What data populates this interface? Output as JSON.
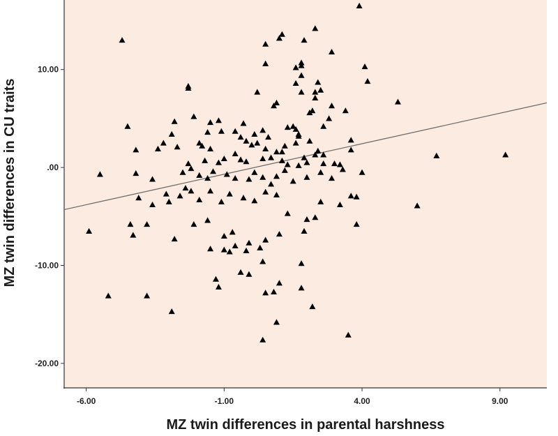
{
  "chart_data": {
    "type": "scatter",
    "title": "",
    "xlabel": "MZ twin differences in parental harshness",
    "ylabel": "MZ twin differences in CU traits",
    "xlim": [
      -6.8,
      10.7
    ],
    "ylim": [
      -22.5,
      17.1
    ],
    "x_ticks": [
      -6,
      -1,
      4,
      9
    ],
    "x_tick_labels": [
      "-6.00",
      "-1.00",
      "4.00",
      "9.00"
    ],
    "y_ticks": [
      -20,
      -10,
      0,
      10
    ],
    "y_tick_labels": [
      "-20.00",
      "-10.00",
      ".00",
      "10.00"
    ],
    "grid": false,
    "legend": "none",
    "colors": {
      "plot_background": "#fcebe0",
      "marker": "#000000",
      "fit_line": "#707070",
      "axis": "#333333"
    },
    "marker": "triangle",
    "fit_line": {
      "x": [
        -6.8,
        10.7
      ],
      "y": [
        -4.3,
        6.6
      ]
    },
    "points": [
      [
        -4.7,
        13.0
      ],
      [
        3.9,
        16.5
      ],
      [
        1.1,
        13.6
      ],
      [
        1.0,
        13.2
      ],
      [
        0.5,
        12.6
      ],
      [
        2.3,
        14.2
      ],
      [
        1.9,
        13.0
      ],
      [
        2.9,
        11.8
      ],
      [
        4.1,
        10.3
      ],
      [
        4.2,
        8.8
      ],
      [
        5.3,
        6.7
      ],
      [
        0.5,
        10.6
      ],
      [
        1.6,
        10.2
      ],
      [
        1.8,
        10.7
      ],
      [
        1.8,
        10.4
      ],
      [
        1.8,
        9.4
      ],
      [
        1.6,
        8.6
      ],
      [
        2.4,
        8.7
      ],
      [
        2.5,
        7.9
      ],
      [
        2.3,
        7.7
      ],
      [
        2.3,
        7.1
      ],
      [
        -2.3,
        8.3
      ],
      [
        -2.3,
        8.1
      ],
      [
        0.2,
        7.7
      ],
      [
        1.8,
        7.7
      ],
      [
        -2.8,
        4.7
      ],
      [
        -2.1,
        5.2
      ],
      [
        -1.2,
        4.8
      ],
      [
        -1.5,
        4.6
      ],
      [
        -0.3,
        4.5
      ],
      [
        0.8,
        6.3
      ],
      [
        0.9,
        6.6
      ],
      [
        2.2,
        5.8
      ],
      [
        2.1,
        5.6
      ],
      [
        2.9,
        6.3
      ],
      [
        3.4,
        5.8
      ],
      [
        2.8,
        5.0
      ],
      [
        -4.5,
        4.2
      ],
      [
        -2.9,
        3.4
      ],
      [
        -1.6,
        3.6
      ],
      [
        -1.9,
        2.5
      ],
      [
        -0.6,
        3.7
      ],
      [
        0.1,
        3.4
      ],
      [
        0.4,
        3.8
      ],
      [
        0.6,
        3.1
      ],
      [
        1.3,
        4.1
      ],
      [
        1.5,
        4.2
      ],
      [
        1.7,
        3.2
      ],
      [
        1.6,
        3.9
      ],
      [
        2.6,
        4.2
      ],
      [
        1.7,
        3.4
      ],
      [
        -3.2,
        2.5
      ],
      [
        -2.7,
        2.1
      ],
      [
        -1.8,
        2.2
      ],
      [
        -1.5,
        1.9
      ],
      [
        -1.1,
        3.7
      ],
      [
        -0.4,
        3.1
      ],
      [
        -0.2,
        2.7
      ],
      [
        0.0,
        2.3
      ],
      [
        0.2,
        2.5
      ],
      [
        0.5,
        1.9
      ],
      [
        0.9,
        1.6
      ],
      [
        1.1,
        1.6
      ],
      [
        1.2,
        2.2
      ],
      [
        1.6,
        2.5
      ],
      [
        2.1,
        2.7
      ],
      [
        2.4,
        1.7
      ],
      [
        2.6,
        1.3
      ],
      [
        3.6,
        1.8
      ],
      [
        3.6,
        2.8
      ],
      [
        -4.2,
        1.8
      ],
      [
        -3.4,
        1.9
      ],
      [
        -2.5,
        -0.5
      ],
      [
        -2.2,
        -0.1
      ],
      [
        -2.3,
        0.4
      ],
      [
        -1.7,
        0.7
      ],
      [
        -1.2,
        0.5
      ],
      [
        -1.0,
        0.9
      ],
      [
        -0.6,
        1.4
      ],
      [
        -0.4,
        0.8
      ],
      [
        -0.2,
        0.6
      ],
      [
        0.4,
        0.9
      ],
      [
        0.7,
        1.0
      ],
      [
        1.1,
        0.7
      ],
      [
        1.3,
        0.3
      ],
      [
        1.7,
        0.2
      ],
      [
        1.9,
        1.0
      ],
      [
        2.0,
        0.5
      ],
      [
        2.3,
        1.3
      ],
      [
        2.6,
        0.4
      ],
      [
        3.0,
        0.4
      ],
      [
        3.2,
        0.3
      ],
      [
        -5.5,
        -0.7
      ],
      [
        -4.2,
        -0.6
      ],
      [
        -3.6,
        -1.2
      ],
      [
        -3.1,
        -2.7
      ],
      [
        -2.4,
        -2.1
      ],
      [
        -1.9,
        -0.8
      ],
      [
        -1.6,
        -1.1
      ],
      [
        -1.4,
        -0.4
      ],
      [
        -0.9,
        -0.7
      ],
      [
        -0.6,
        -1.1
      ],
      [
        -0.1,
        -1.2
      ],
      [
        0.1,
        -0.5
      ],
      [
        0.4,
        -1.0
      ],
      [
        0.7,
        -1.7
      ],
      [
        0.9,
        -0.9
      ],
      [
        1.2,
        -0.3
      ],
      [
        1.5,
        -1.4
      ],
      [
        2.0,
        -1.0
      ],
      [
        2.5,
        -0.5
      ],
      [
        2.9,
        -1.1
      ],
      [
        3.3,
        -0.2
      ],
      [
        3.8,
        -3.0
      ],
      [
        4.0,
        -0.5
      ],
      [
        -4.1,
        -3.1
      ],
      [
        -3.6,
        -3.8
      ],
      [
        -3.0,
        -3.5
      ],
      [
        -2.6,
        -2.9
      ],
      [
        -2.2,
        -2.4
      ],
      [
        -1.9,
        -3.3
      ],
      [
        -1.5,
        -2.4
      ],
      [
        -1.1,
        -3.5
      ],
      [
        -0.8,
        -2.7
      ],
      [
        -0.3,
        -3.1
      ],
      [
        0.1,
        -3.4
      ],
      [
        0.5,
        -2.5
      ],
      [
        0.9,
        -2.8
      ],
      [
        1.3,
        -4.7
      ],
      [
        2.0,
        -5.3
      ],
      [
        2.5,
        -3.5
      ],
      [
        3.2,
        -3.8
      ],
      [
        3.6,
        -2.9
      ],
      [
        6.7,
        1.2
      ],
      [
        9.2,
        1.3
      ],
      [
        6.0,
        -3.9
      ],
      [
        -5.9,
        -6.5
      ],
      [
        -4.4,
        -5.8
      ],
      [
        -3.8,
        -5.8
      ],
      [
        -4.3,
        -6.9
      ],
      [
        -2.1,
        -5.8
      ],
      [
        -1.6,
        -5.4
      ],
      [
        -1.0,
        -7.0
      ],
      [
        -0.7,
        -6.6
      ],
      [
        -0.1,
        -7.7
      ],
      [
        0.5,
        -7.4
      ],
      [
        1.0,
        -6.8
      ],
      [
        1.9,
        -6.5
      ],
      [
        2.3,
        -5.1
      ],
      [
        3.8,
        -5.8
      ],
      [
        -2.8,
        -7.3
      ],
      [
        -1.5,
        -8.3
      ],
      [
        -1.0,
        -8.4
      ],
      [
        -0.8,
        -8.6
      ],
      [
        -0.6,
        -8.0
      ],
      [
        -0.2,
        -8.5
      ],
      [
        0.3,
        -8.2
      ],
      [
        0.4,
        -9.6
      ],
      [
        1.8,
        -9.8
      ],
      [
        -1.3,
        -11.4
      ],
      [
        -1.2,
        -12.2
      ],
      [
        -0.4,
        -10.7
      ],
      [
        -0.1,
        -10.9
      ],
      [
        0.5,
        -12.8
      ],
      [
        0.8,
        -12.7
      ],
      [
        1.0,
        -11.8
      ],
      [
        1.8,
        -12.3
      ],
      [
        -5.2,
        -13.1
      ],
      [
        -3.8,
        -13.1
      ],
      [
        -2.9,
        -14.7
      ],
      [
        2.2,
        -14.2
      ],
      [
        0.9,
        -15.8
      ],
      [
        0.4,
        -17.6
      ],
      [
        3.5,
        -17.1
      ]
    ]
  }
}
